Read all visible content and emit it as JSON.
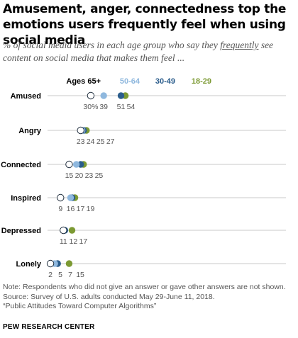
{
  "title": "Amusement, anger, connectedness top the emotions users frequently feel when using social media",
  "subtitle_before": "% of social media users in each age group who say they ",
  "subtitle_emph": "frequently",
  "subtitle_after": " see content on social media that makes them feel ...",
  "chart_data": {
    "type": "scatter",
    "categories": [
      "Amused",
      "Angry",
      "Connected",
      "Inspired",
      "Depressed",
      "Lonely"
    ],
    "series": [
      {
        "name": "Ages 65+",
        "values": [
          30,
          23,
          15,
          9,
          11,
          2
        ],
        "color": "#ffffff",
        "stroke": "#1f2d3d"
      },
      {
        "name": "50-64",
        "values": [
          39,
          24,
          20,
          16,
          11,
          5
        ],
        "color": "#8fb8de"
      },
      {
        "name": "30-49",
        "values": [
          51,
          25,
          23,
          17,
          12,
          7
        ],
        "color": "#2b5d8c"
      },
      {
        "name": "18-29",
        "values": [
          54,
          27,
          25,
          19,
          17,
          15
        ],
        "color": "#7c9a33"
      }
    ],
    "value_labels": [
      [
        "30%",
        "39",
        "51",
        "54"
      ],
      [
        "23",
        "24",
        "25",
        "27"
      ],
      [
        "15",
        "20",
        "23",
        "25"
      ],
      [
        "9",
        "16",
        "17",
        "19"
      ],
      [
        "11",
        "12",
        "17"
      ],
      [
        "2",
        "5",
        "7",
        "15"
      ]
    ],
    "xlim": [
      0,
      100
    ],
    "legend_placement": "top, above first row"
  },
  "note": "Note: Respondents who did not give an answer or gave other answers are not shown.",
  "source": "Source: Survey of U.S. adults conducted May 29-June 11, 2018.",
  "report": "“Public Attitudes Toward Computer Algorithms”",
  "org": "PEW RESEARCH CENTER"
}
